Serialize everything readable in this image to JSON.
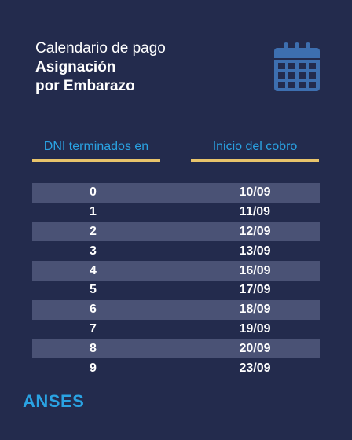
{
  "header": {
    "line1": "Calendario de pago",
    "line2": "Asignación",
    "line3": "por Embarazo"
  },
  "columns": {
    "dni": "DNI terminados en",
    "start": "Inicio del cobro"
  },
  "rows": [
    {
      "dni": "0",
      "date": "10/09"
    },
    {
      "dni": "1",
      "date": "11/09"
    },
    {
      "dni": "2",
      "date": "12/09"
    },
    {
      "dni": "3",
      "date": "13/09"
    },
    {
      "dni": "4",
      "date": "16/09"
    },
    {
      "dni": "5",
      "date": "17/09"
    },
    {
      "dni": "6",
      "date": "18/09"
    },
    {
      "dni": "7",
      "date": "19/09"
    },
    {
      "dni": "8",
      "date": "20/09"
    },
    {
      "dni": "9",
      "date": "23/09"
    }
  ],
  "logo": "ANSES",
  "colors": {
    "background": "#232b4d",
    "accent_blue": "#2aa3e3",
    "underline_gold": "#e8c46b",
    "row_shade": "#4a5275",
    "icon_blue": "#3d6fb0"
  },
  "icons": {
    "calendar": "calendar-icon"
  }
}
